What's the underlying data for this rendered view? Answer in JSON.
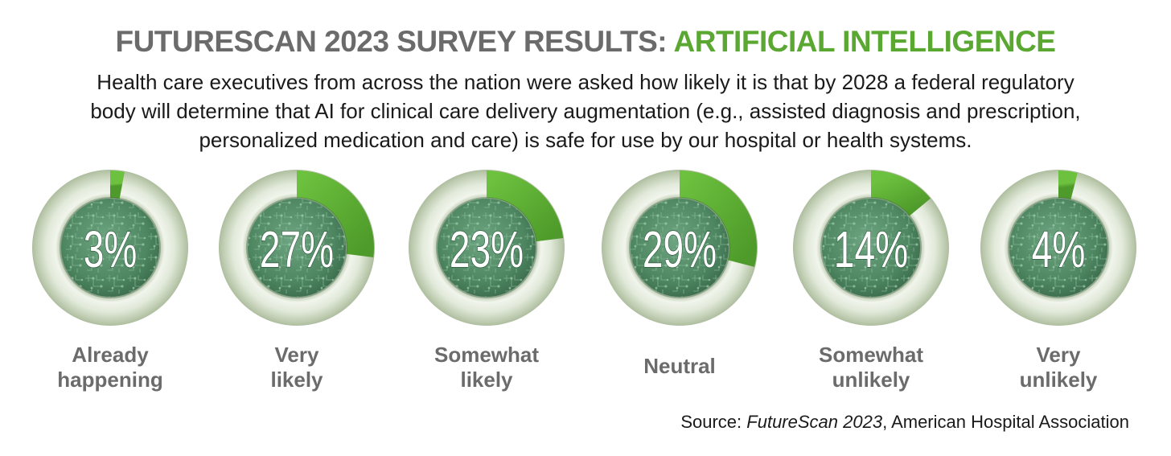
{
  "title": {
    "main": "FUTURESCAN 2023 SURVEY RESULTS:",
    "accent": "ARTIFICIAL INTELLIGENCE"
  },
  "subtitle": {
    "line1": "Health care executives from across the nation were asked how likely it is that by 2028 a federal regulatory",
    "line2": "body will determine that AI for clinical care delivery augmentation (e.g., assisted diagnosis and prescription,",
    "line3": "personalized medication and care) is safe for use by our hospital or health systems."
  },
  "source": {
    "prefix": "Source:",
    "title": "FutureScan 2023",
    "suffix": ", American Hospital Association"
  },
  "colors": {
    "accent": "#5aa832",
    "title_gray": "#6b6b6b",
    "label_gray": "#6b6b6b",
    "ring_light": "#e3ebd9",
    "inner_green": "#4e8561"
  },
  "chart_data": {
    "type": "donut",
    "value_unit": "%",
    "categories": [
      "Already happening",
      "Very likely",
      "Somewhat likely",
      "Neutral",
      "Somewhat unlikely",
      "Very unlikely"
    ],
    "label_lines": [
      [
        "Already",
        "happening"
      ],
      [
        "Very",
        "likely"
      ],
      [
        "Somewhat",
        "likely"
      ],
      [
        "Neutral"
      ],
      [
        "Somewhat",
        "unlikely"
      ],
      [
        "Very",
        "unlikely"
      ]
    ],
    "values": [
      3,
      27,
      23,
      29,
      14,
      4
    ],
    "value_labels": [
      "3%",
      "27%",
      "23%",
      "29%",
      "14%",
      "4%"
    ],
    "scale_max": 100
  }
}
